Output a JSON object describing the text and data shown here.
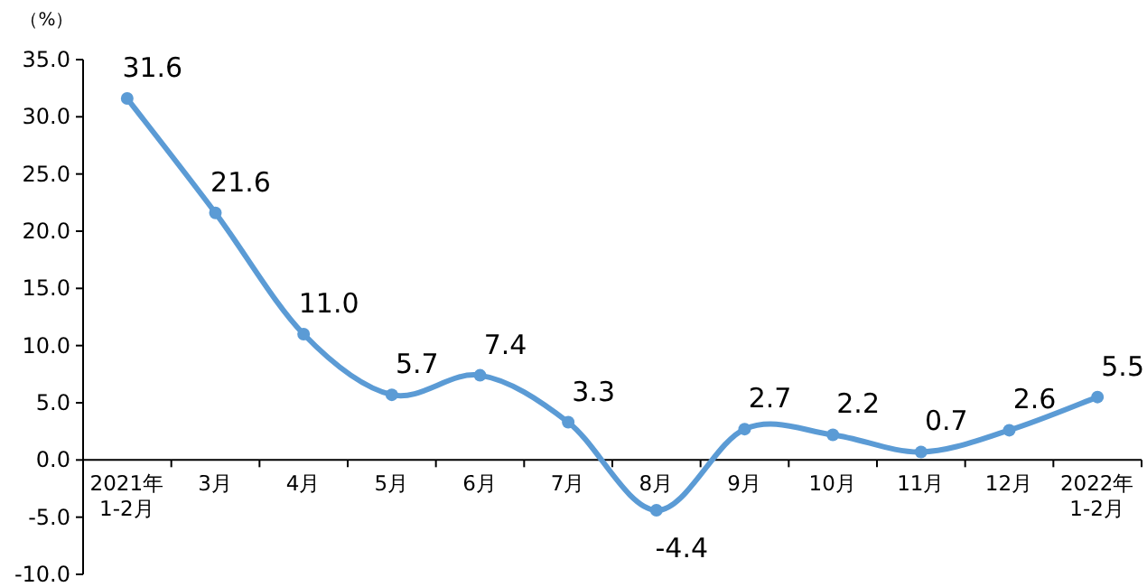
{
  "chart_data": {
    "type": "line",
    "ylabel": "（%）",
    "categories": [
      "2021年\n1-2月",
      "3月",
      "4月",
      "5月",
      "6月",
      "7月",
      "8月",
      "9月",
      "10月",
      "11月",
      "12月",
      "2022年\n1-2月"
    ],
    "series": [
      {
        "color": "#5b9bd5",
        "values": [
          31.6,
          21.6,
          11.0,
          5.7,
          7.4,
          3.3,
          -4.4,
          2.7,
          2.2,
          0.7,
          2.6,
          5.5
        ],
        "value_labels": [
          "31.6",
          "21.6",
          "11.0",
          "5.7",
          "7.4",
          "3.3",
          "-4.4",
          "2.7",
          "2.2",
          "0.7",
          "2.6",
          "5.5"
        ]
      }
    ],
    "ylim": [
      -10,
      35
    ],
    "yticks": [
      {
        "value": -10,
        "label": "-10.0"
      },
      {
        "value": -5,
        "label": "-5.0"
      },
      {
        "value": 0,
        "label": "0.0"
      },
      {
        "value": 5,
        "label": "5.0"
      },
      {
        "value": 10,
        "label": "10.0"
      },
      {
        "value": 15,
        "label": "15.0"
      },
      {
        "value": 20,
        "label": "20.0"
      },
      {
        "value": 25,
        "label": "25.0"
      },
      {
        "value": 30,
        "label": "30.0"
      },
      {
        "value": 35,
        "label": "35.0"
      }
    ],
    "marker": "circle",
    "grid": false
  }
}
